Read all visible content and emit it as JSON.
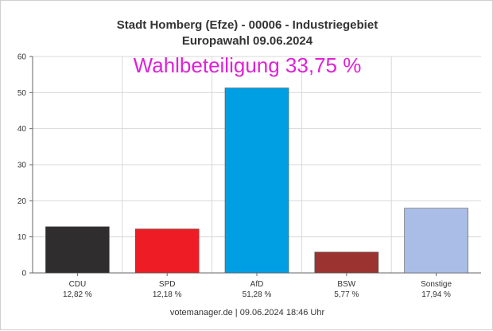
{
  "chart_data": {
    "type": "bar",
    "title": "Stadt Homberg (Efze) - 00006 - Industriegebiet",
    "subtitle": "Europawahl 09.06.2024",
    "annotation": "Wahlbeteiligung 33,75 %",
    "footer": "votemanager.de | 09.06.2024 18:46 Uhr",
    "categories": [
      "CDU",
      "SPD",
      "AfD",
      "BSW",
      "Sonstige"
    ],
    "values": [
      12.82,
      12.18,
      51.28,
      5.77,
      17.94
    ],
    "value_labels": [
      "12,82 %",
      "12,18 %",
      "51,28 %",
      "5,77 %",
      "17,94 %"
    ],
    "colors": [
      "#2f2d2e",
      "#ee1d25",
      "#009fe3",
      "#9b3431",
      "#aabde6"
    ],
    "yticks": [
      "0",
      "10",
      "20",
      "30",
      "40",
      "50",
      "60"
    ],
    "ylim": [
      0,
      60
    ],
    "grid": true,
    "legend": "none"
  }
}
